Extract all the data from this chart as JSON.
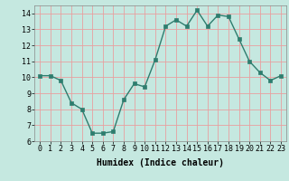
{
  "x": [
    0,
    1,
    2,
    3,
    4,
    5,
    6,
    7,
    8,
    9,
    10,
    11,
    12,
    13,
    14,
    15,
    16,
    17,
    18,
    19,
    20,
    21,
    22,
    23
  ],
  "y": [
    10.1,
    10.1,
    9.8,
    8.4,
    8.0,
    6.5,
    6.5,
    6.6,
    8.6,
    9.6,
    9.4,
    11.1,
    13.2,
    13.6,
    13.2,
    14.2,
    13.2,
    13.9,
    13.8,
    12.4,
    11.0,
    10.3,
    9.8,
    10.1
  ],
  "line_color": "#2e7d6e",
  "marker_color": "#2e7d6e",
  "bg_color": "#c5e8e0",
  "grid_color_major": "#e8a0a0",
  "grid_color_minor": "#ffffff",
  "xlabel": "Humidex (Indice chaleur)",
  "ylim": [
    6,
    14.5
  ],
  "xlim": [
    -0.5,
    23.5
  ],
  "yticks": [
    6,
    7,
    8,
    9,
    10,
    11,
    12,
    13,
    14
  ],
  "xticks": [
    0,
    1,
    2,
    3,
    4,
    5,
    6,
    7,
    8,
    9,
    10,
    11,
    12,
    13,
    14,
    15,
    16,
    17,
    18,
    19,
    20,
    21,
    22,
    23
  ],
  "xlabel_fontsize": 7,
  "tick_fontsize": 6,
  "line_width": 1.0,
  "marker_size": 2.5
}
